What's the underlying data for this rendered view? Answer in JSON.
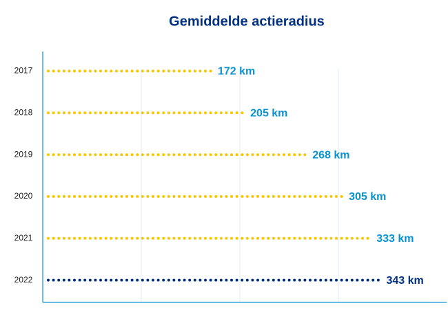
{
  "chart_data": {
    "type": "bar",
    "orientation": "horizontal",
    "title": "Gemiddelde actieradius",
    "categories": [
      "2017",
      "2018",
      "2019",
      "2020",
      "2021",
      "2022"
    ],
    "values": [
      172,
      205,
      268,
      305,
      333,
      343
    ],
    "value_labels": [
      "172 km",
      "205 km",
      "268 km",
      "305 km",
      "333 km",
      "343 km"
    ],
    "colors": [
      "#f7c600",
      "#f7c600",
      "#f7c600",
      "#f7c600",
      "#f7c600",
      "#003082"
    ],
    "label_colors": [
      "#0a92d0",
      "#0a92d0",
      "#0a92d0",
      "#0a92d0",
      "#0a92d0",
      "#003082"
    ],
    "xlim": [
      0,
      400
    ],
    "xticks": [
      100,
      200,
      300
    ],
    "grid": true
  }
}
